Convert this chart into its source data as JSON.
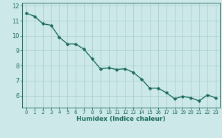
{
  "x": [
    0,
    1,
    2,
    3,
    4,
    5,
    6,
    7,
    8,
    9,
    10,
    11,
    12,
    13,
    14,
    15,
    16,
    17,
    18,
    19,
    20,
    21,
    22,
    23
  ],
  "y": [
    11.5,
    11.3,
    10.8,
    10.7,
    9.9,
    9.45,
    9.45,
    9.1,
    8.45,
    7.8,
    7.85,
    7.75,
    7.8,
    7.55,
    7.1,
    6.5,
    6.5,
    6.2,
    5.8,
    5.95,
    5.85,
    5.65,
    6.05,
    5.85
  ],
  "line_color": "#1a6b5a",
  "marker": "D",
  "marker_size": 2.5,
  "bg_color": "#cce8e8",
  "grid_color": "#aacfcf",
  "xlabel": "Humidex (Indice chaleur)",
  "xlabel_color": "#1a6b5a",
  "axis_color": "#1a6b5a",
  "tick_color": "#1a6b5a",
  "ylim": [
    5.2,
    12.2
  ],
  "xlim": [
    -0.5,
    23.5
  ],
  "yticks": [
    6,
    7,
    8,
    9,
    10,
    11,
    12
  ],
  "xticks": [
    0,
    1,
    2,
    3,
    4,
    5,
    6,
    7,
    8,
    9,
    10,
    11,
    12,
    13,
    14,
    15,
    16,
    17,
    18,
    19,
    20,
    21,
    22,
    23
  ],
  "linewidth": 1.0,
  "xtick_fontsize": 5.0,
  "ytick_fontsize": 6.0,
  "xlabel_fontsize": 6.5
}
